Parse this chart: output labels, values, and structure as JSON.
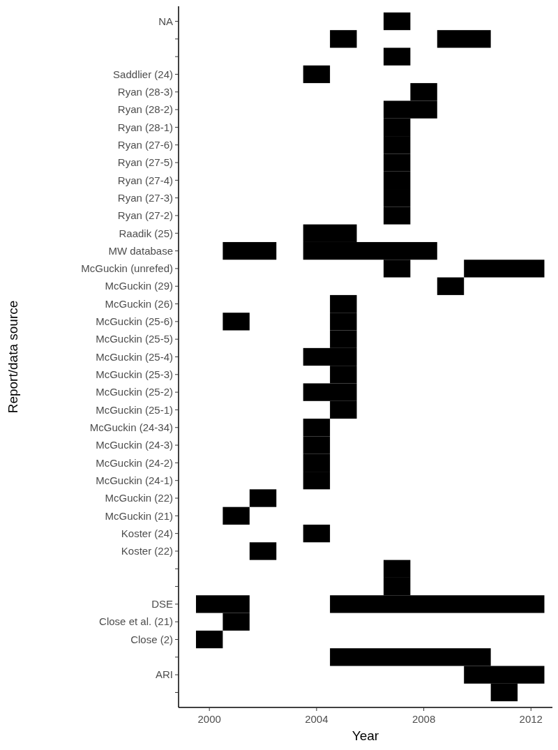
{
  "chart_data": {
    "type": "bar",
    "orientation": "horizontal",
    "xlabel": "Year",
    "ylabel": "Report/data source",
    "categories": [
      "NA",
      null,
      null,
      "Saddlier (24)",
      "Ryan (28-3)",
      "Ryan (28-2)",
      "Ryan (28-1)",
      "Ryan (27-6)",
      "Ryan (27-5)",
      "Ryan (27-4)",
      "Ryan (27-3)",
      "Ryan (27-2)",
      "Raadik (25)",
      "MW database",
      "McGuckin (unrefed)",
      "McGuckin (29)",
      "McGuckin (26)",
      "McGuckin (25-6)",
      "McGuckin (25-5)",
      "McGuckin (25-4)",
      "McGuckin (25-3)",
      "McGuckin (25-2)",
      "McGuckin (25-1)",
      "McGuckin (24-34)",
      "McGuckin (24-3)",
      "McGuckin (24-2)",
      "McGuckin (24-1)",
      "McGuckin (22)",
      "McGuckin (21)",
      "Koster (24)",
      "Koster (22)",
      null,
      null,
      "DSE",
      "Close et al. (21)",
      "Close (2)",
      null,
      "ARI",
      null
    ],
    "series": [
      {
        "color": "#000000",
        "base": [
          2006.5,
          2004.5,
          2006.5,
          2003.5,
          2007.5,
          2006.5,
          2006.5,
          2006.5,
          2006.5,
          2006.5,
          2006.5,
          2006.5,
          2003.5,
          2000.5,
          2006.5,
          2008.5,
          2004.5,
          2000.5,
          2004.5,
          2003.5,
          2004.5,
          2003.5,
          2004.5,
          2003.5,
          2003.5,
          2003.5,
          2003.5,
          2001.5,
          2000.5,
          2003.5,
          2001.5,
          2006.5,
          2006.5,
          1999.5,
          2000.5,
          1999.5,
          2004.5,
          2009.5,
          2010.5
        ],
        "values": [
          1,
          1,
          1,
          1,
          1,
          2,
          1,
          1,
          1,
          1,
          1,
          1,
          2,
          2,
          1,
          1,
          1,
          1,
          1,
          2,
          1,
          2,
          1,
          1,
          1,
          1,
          1,
          1,
          1,
          1,
          1,
          1,
          1,
          2,
          1,
          1,
          6,
          3,
          1
        ]
      },
      {
        "color": "#000000",
        "base": [
          null,
          2008.5,
          null,
          null,
          null,
          null,
          null,
          null,
          null,
          null,
          null,
          null,
          null,
          2003.5,
          2009.5,
          null,
          null,
          2004.5,
          null,
          null,
          null,
          null,
          null,
          null,
          null,
          null,
          null,
          null,
          null,
          null,
          null,
          null,
          null,
          2004.5,
          null,
          null,
          null,
          null,
          null
        ],
        "values": [
          null,
          2,
          null,
          null,
          null,
          null,
          null,
          null,
          null,
          null,
          null,
          null,
          null,
          5,
          3,
          null,
          null,
          1,
          null,
          null,
          null,
          null,
          null,
          null,
          null,
          null,
          null,
          null,
          null,
          null,
          null,
          null,
          null,
          8,
          null,
          null,
          null,
          null,
          null
        ]
      }
    ],
    "xlim": [
      1998.85,
      2012.8
    ],
    "xticks": [
      2000,
      2004,
      2008,
      2012
    ]
  }
}
